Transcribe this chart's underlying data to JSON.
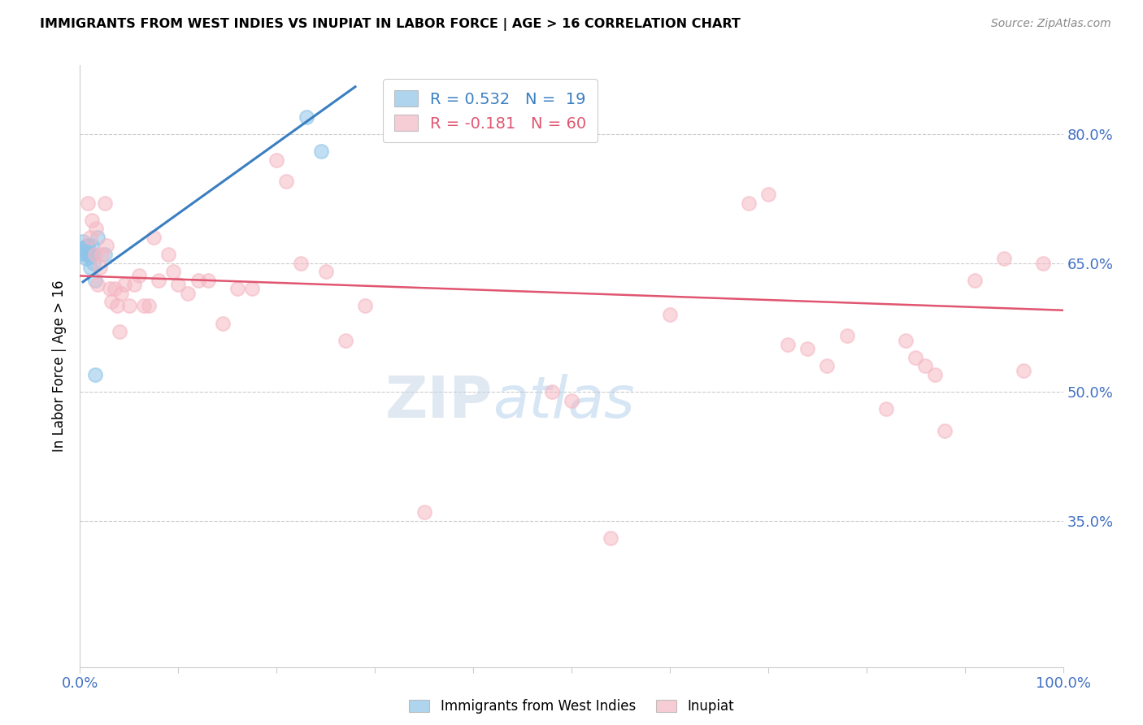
{
  "title": "IMMIGRANTS FROM WEST INDIES VS INUPIAT IN LABOR FORCE | AGE > 16 CORRELATION CHART",
  "source": "Source: ZipAtlas.com",
  "ylabel": "In Labor Force | Age > 16",
  "xlim": [
    0.0,
    1.0
  ],
  "ylim": [
    0.18,
    0.88
  ],
  "yticks": [
    0.35,
    0.5,
    0.65,
    0.8
  ],
  "ytick_labels": [
    "35.0%",
    "50.0%",
    "65.0%",
    "80.0%"
  ],
  "xticks": [
    0.0,
    0.1,
    0.2,
    0.3,
    0.4,
    0.5,
    0.6,
    0.7,
    0.8,
    0.9,
    1.0
  ],
  "xtick_labels": [
    "0.0%",
    "",
    "",
    "",
    "",
    "",
    "",
    "",
    "",
    "",
    "100.0%"
  ],
  "legend_r_blue": "R = 0.532",
  "legend_n_blue": "N =  19",
  "legend_r_pink": "R = -0.181",
  "legend_n_pink": "N = 60",
  "blue_color": "#8ec4e8",
  "pink_color": "#f5b8c4",
  "blue_line_color": "#3a7fc1",
  "pink_line_color": "#e05570",
  "axis_color": "#4472c4",
  "blue_scatter_x": [
    0.003,
    0.004,
    0.005,
    0.006,
    0.007,
    0.007,
    0.008,
    0.009,
    0.01,
    0.01,
    0.012,
    0.013,
    0.014,
    0.015,
    0.015,
    0.018,
    0.025,
    0.23,
    0.245
  ],
  "blue_scatter_y": [
    0.675,
    0.668,
    0.66,
    0.655,
    0.67,
    0.66,
    0.67,
    0.66,
    0.66,
    0.645,
    0.67,
    0.66,
    0.65,
    0.52,
    0.63,
    0.68,
    0.66,
    0.82,
    0.78
  ],
  "pink_scatter_x": [
    0.008,
    0.01,
    0.012,
    0.015,
    0.016,
    0.018,
    0.02,
    0.022,
    0.025,
    0.027,
    0.03,
    0.032,
    0.035,
    0.038,
    0.04,
    0.042,
    0.045,
    0.05,
    0.055,
    0.06,
    0.065,
    0.07,
    0.075,
    0.08,
    0.09,
    0.095,
    0.1,
    0.11,
    0.12,
    0.13,
    0.145,
    0.16,
    0.175,
    0.2,
    0.21,
    0.225,
    0.25,
    0.27,
    0.29,
    0.35,
    0.48,
    0.5,
    0.54,
    0.6,
    0.68,
    0.7,
    0.72,
    0.74,
    0.76,
    0.78,
    0.82,
    0.84,
    0.85,
    0.86,
    0.87,
    0.88,
    0.91,
    0.94,
    0.96,
    0.98
  ],
  "pink_scatter_y": [
    0.72,
    0.68,
    0.7,
    0.66,
    0.69,
    0.625,
    0.645,
    0.66,
    0.72,
    0.67,
    0.62,
    0.605,
    0.62,
    0.6,
    0.57,
    0.615,
    0.625,
    0.6,
    0.625,
    0.635,
    0.6,
    0.6,
    0.68,
    0.63,
    0.66,
    0.64,
    0.625,
    0.615,
    0.63,
    0.63,
    0.58,
    0.62,
    0.62,
    0.77,
    0.745,
    0.65,
    0.64,
    0.56,
    0.6,
    0.36,
    0.5,
    0.49,
    0.33,
    0.59,
    0.72,
    0.73,
    0.555,
    0.55,
    0.53,
    0.565,
    0.48,
    0.56,
    0.54,
    0.53,
    0.52,
    0.455,
    0.63,
    0.655,
    0.525,
    0.65
  ],
  "blue_line_x": [
    0.003,
    0.28
  ],
  "blue_line_y": [
    0.628,
    0.855
  ],
  "pink_line_x": [
    0.0,
    1.0
  ],
  "pink_line_y": [
    0.635,
    0.595
  ],
  "figsize": [
    14.06,
    8.92
  ],
  "dpi": 100
}
